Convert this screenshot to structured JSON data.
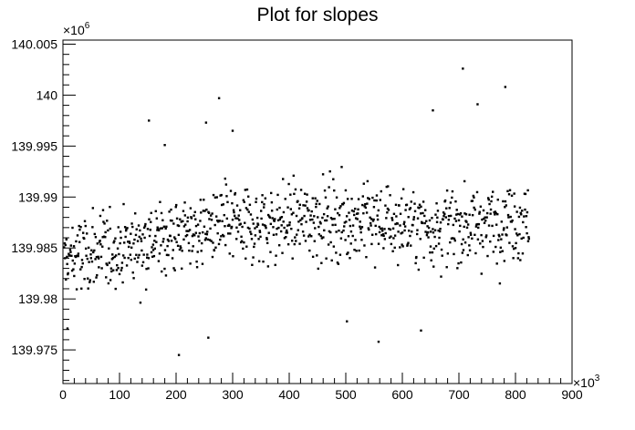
{
  "chart_data": {
    "type": "scatter",
    "title": "Plot for slopes",
    "xlabel": "",
    "ylabel": "",
    "x_exponent_label": "×10",
    "x_exponent": "3",
    "y_exponent_label": "×10",
    "y_exponent": "6",
    "xlim": [
      0,
      900
    ],
    "ylim": [
      139.9717,
      140.0054
    ],
    "x_ticks": [
      0,
      100,
      200,
      300,
      400,
      500,
      600,
      700,
      800,
      900
    ],
    "x_tick_labels": [
      "0",
      "100",
      "200",
      "300",
      "400",
      "500",
      "600",
      "700",
      "800",
      "900"
    ],
    "y_ticks": [
      139.975,
      139.98,
      139.985,
      139.99,
      139.995,
      140,
      140.005
    ],
    "y_tick_labels": [
      "139.975",
      "139.98",
      "139.985",
      "139.99",
      "139.995",
      "140",
      "140.005"
    ],
    "grid": false,
    "legend": false,
    "marker_color": "#000000",
    "points_summary": "~1000 points, x from ~0 to ~825 (×10^3); y mostly between 139.980 and 139.993 (×10^6), mean rising slightly from ~139.984 at x=0 to ~139.988 around x≥300",
    "outliers": [
      {
        "x": 8,
        "y": 139.9771
      },
      {
        "x": 152,
        "y": 139.9975
      },
      {
        "x": 180,
        "y": 139.9951
      },
      {
        "x": 205,
        "y": 139.9745
      },
      {
        "x": 253,
        "y": 139.9973
      },
      {
        "x": 257,
        "y": 139.9762
      },
      {
        "x": 276,
        "y": 139.9997
      },
      {
        "x": 300,
        "y": 139.9965
      },
      {
        "x": 558,
        "y": 139.9758
      },
      {
        "x": 707,
        "y": 140.0026
      },
      {
        "x": 733,
        "y": 139.9991
      },
      {
        "x": 782,
        "y": 140.0008
      },
      {
        "x": 654,
        "y": 139.9985
      },
      {
        "x": 502,
        "y": 139.9778
      },
      {
        "x": 633,
        "y": 139.9769
      }
    ]
  }
}
